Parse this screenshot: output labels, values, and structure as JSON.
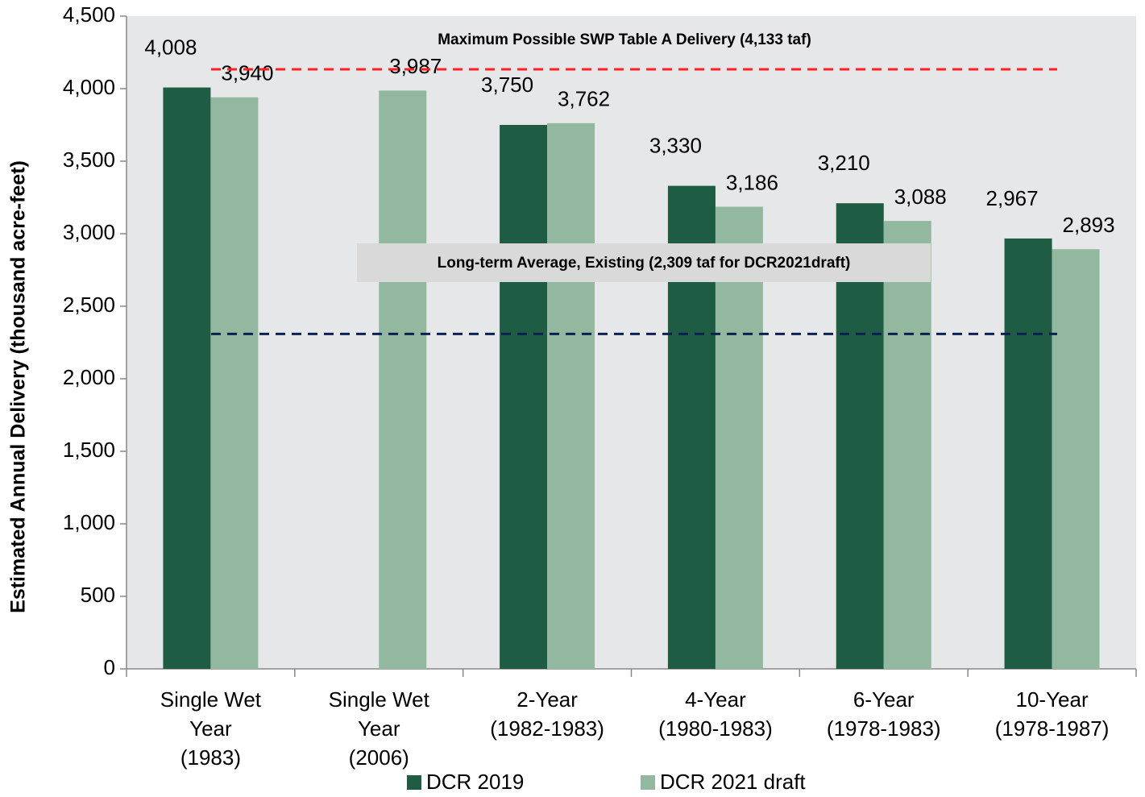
{
  "chart_data": {
    "type": "bar",
    "ylabel": "Estimated Annual Delivery (thousand acre-feet)",
    "categories": [
      "Single Wet\nYear\n(1983)",
      "Single Wet\nYear\n(2006)",
      "2-Year\n(1982-1983)",
      "4-Year\n(1980-1983)",
      "6-Year\n(1978-1983)",
      "10-Year\n(1978-1987)"
    ],
    "series": [
      {
        "name": "DCR 2019",
        "color": "#1f5c44",
        "values": [
          4008,
          null,
          3750,
          3330,
          3210,
          2967
        ],
        "value_labels": [
          "4,008",
          null,
          "3,750",
          "3,330",
          "3,210",
          "2,967"
        ]
      },
      {
        "name": "DCR 2021 draft",
        "color": "#93b8a0",
        "values": [
          3940,
          3987,
          3762,
          3186,
          3088,
          2893
        ],
        "value_labels": [
          "3,940",
          "3,987",
          "3,762",
          "3,186",
          "3,088",
          "2,893"
        ]
      }
    ],
    "reference_lines": [
      {
        "value": 4133,
        "color": "#ff2020",
        "label": "Maximum Possible SWP Table A Delivery (4,133 taf)"
      },
      {
        "value": 2309,
        "color": "#0d2150",
        "label": "Long-term Average, Existing (2,309 taf for DCR2021draft)"
      }
    ],
    "ylim": [
      0,
      4500
    ],
    "yticks": [
      0,
      500,
      {
        "value": 1000,
        "label": "1,000"
      },
      {
        "value": 1500,
        "label": "1,500"
      },
      {
        "value": 2000,
        "label": "2,000"
      },
      {
        "value": 2500,
        "label": "2,500"
      },
      {
        "value": 3000,
        "label": "3,000"
      },
      {
        "value": 3500,
        "label": "3,500"
      },
      {
        "value": 4000,
        "label": "4,000"
      },
      {
        "value": 4500,
        "label": "4,500"
      }
    ],
    "grid": false,
    "legend": "bottom"
  }
}
